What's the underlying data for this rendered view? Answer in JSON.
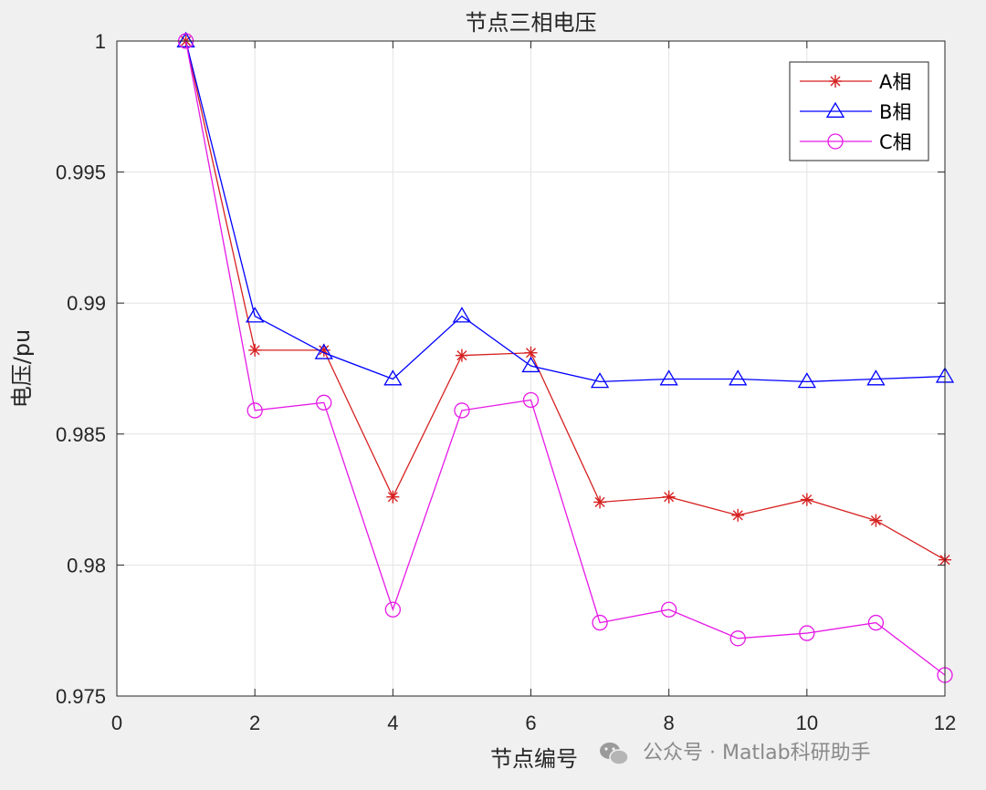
{
  "chart_data": {
    "type": "line",
    "title": "节点三相电压",
    "xlabel": "节点编号",
    "ylabel": "电压/pu",
    "xlim": [
      0,
      12
    ],
    "ylim": [
      0.975,
      1.0
    ],
    "xticks": [
      0,
      2,
      4,
      6,
      8,
      10,
      12
    ],
    "yticks": [
      0.975,
      0.98,
      0.985,
      0.99,
      0.995,
      1
    ],
    "xtick_labels": [
      "0",
      "2",
      "4",
      "6",
      "8",
      "10",
      "12"
    ],
    "ytick_labels": [
      "0.975",
      "0.98",
      "0.985",
      "0.99",
      "0.995",
      "1"
    ],
    "grid": true,
    "legend_position": "top-right",
    "x": [
      1,
      2,
      3,
      4,
      5,
      6,
      7,
      8,
      9,
      10,
      11,
      12
    ],
    "series": [
      {
        "name": "A相",
        "color": "#d62020",
        "marker": "asterisk",
        "values": [
          1.0,
          0.9882,
          0.9882,
          0.9826,
          0.988,
          0.9881,
          0.9824,
          0.9826,
          0.9819,
          0.9825,
          0.9817,
          0.9802
        ]
      },
      {
        "name": "B相",
        "color": "#0000ff",
        "marker": "triangle",
        "values": [
          1.0,
          0.9895,
          0.9881,
          0.9871,
          0.9895,
          0.9876,
          0.987,
          0.9871,
          0.9871,
          0.987,
          0.9871,
          0.9872
        ]
      },
      {
        "name": "C相",
        "color": "#e619e6",
        "marker": "circle",
        "values": [
          1.0,
          0.9859,
          0.9862,
          0.9783,
          0.9859,
          0.9863,
          0.9778,
          0.9783,
          0.9772,
          0.9774,
          0.9778,
          0.9758
        ]
      }
    ]
  },
  "watermark": {
    "text": "公众号 · Matlab科研助手",
    "icon": "wechat-icon"
  }
}
